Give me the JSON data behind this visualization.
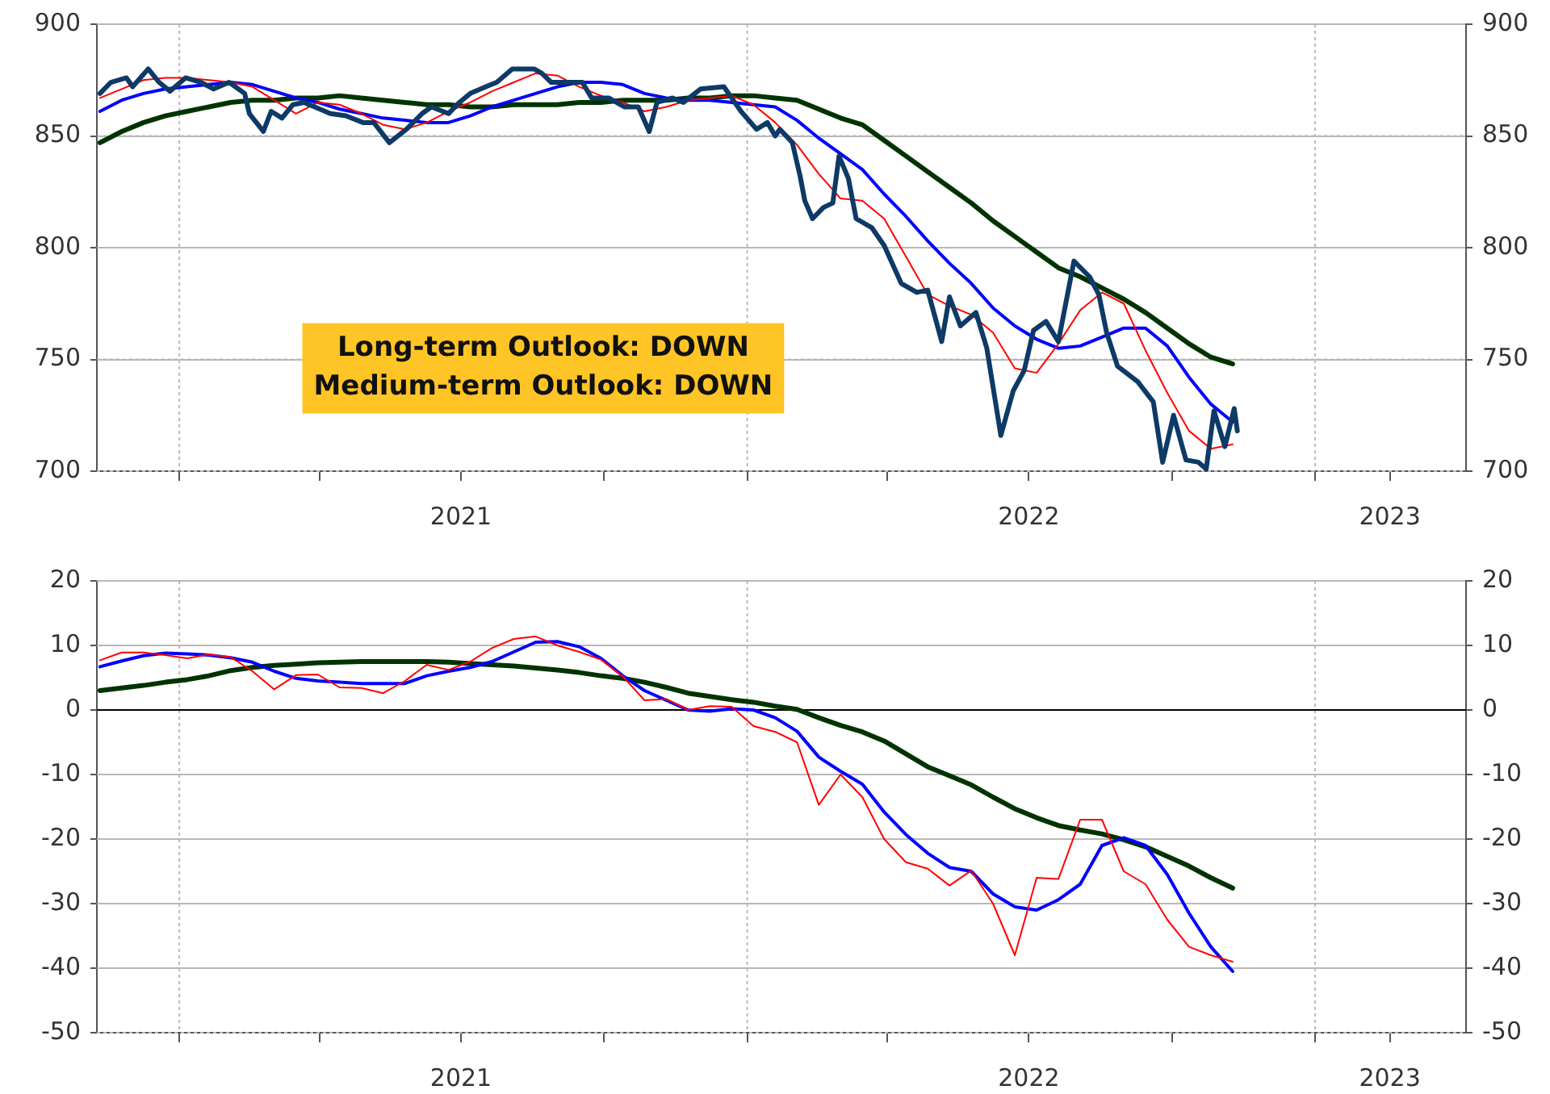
{
  "chart_data": [
    {
      "type": "line",
      "annotations": [
        "Long-term Outlook: DOWN",
        "Medium-term Outlook: DOWN"
      ],
      "x": [
        "2020-11-11",
        "2020-11-25",
        "2020-12-09",
        "2020-12-23",
        "2021-01-06",
        "2021-01-20",
        "2021-02-03",
        "2021-02-17",
        "2021-03-03",
        "2021-03-17",
        "2021-03-31",
        "2021-04-14",
        "2021-04-28",
        "2021-05-12",
        "2021-05-26",
        "2021-06-09",
        "2021-06-23",
        "2021-07-07",
        "2021-07-21",
        "2021-08-04",
        "2021-08-18",
        "2021-09-01",
        "2021-09-15",
        "2021-09-29",
        "2021-10-13",
        "2021-10-27",
        "2021-11-10",
        "2021-11-24",
        "2021-12-08",
        "2021-12-22",
        "2022-01-05",
        "2022-01-19",
        "2022-02-02",
        "2022-02-16",
        "2022-03-02",
        "2022-03-16",
        "2022-03-30",
        "2022-04-13",
        "2022-04-27",
        "2022-05-11",
        "2022-05-25",
        "2022-06-08",
        "2022-06-22",
        "2022-07-06",
        "2022-07-20",
        "2022-08-03",
        "2022-08-17",
        "2022-08-31",
        "2022-09-14",
        "2022-09-28",
        "2022-10-12",
        "2022-10-26",
        "2022-11-09"
      ],
      "series": [
        {
          "color": "#0d3a66",
          "x": [
            "2020-11-11",
            "2020-11-18",
            "2020-11-28",
            "2020-12-02",
            "2020-12-12",
            "2020-12-19",
            "2020-12-26",
            "2021-01-05",
            "2021-01-15",
            "2021-01-23",
            "2021-02-02",
            "2021-02-12",
            "2021-02-15",
            "2021-02-24",
            "2021-03-01",
            "2021-03-08",
            "2021-03-15",
            "2021-03-22",
            "2021-03-29",
            "2021-04-08",
            "2021-04-18",
            "2021-04-29",
            "2021-05-06",
            "2021-05-16",
            "2021-05-27",
            "2021-06-06",
            "2021-06-12",
            "2021-06-23",
            "2021-06-30",
            "2021-07-07",
            "2021-07-17",
            "2021-07-24",
            "2021-08-03",
            "2021-08-17",
            "2021-08-22",
            "2021-08-28",
            "2021-09-07",
            "2021-09-17",
            "2021-09-23",
            "2021-10-04",
            "2021-10-14",
            "2021-10-23",
            "2021-10-30",
            "2021-11-04",
            "2021-11-14",
            "2021-11-21",
            "2021-12-02",
            "2021-12-17",
            "2021-12-28",
            "2022-01-07",
            "2022-01-14",
            "2022-01-19",
            "2022-01-22",
            "2022-01-30",
            "2022-02-04",
            "2022-02-07",
            "2022-02-12",
            "2022-02-19",
            "2022-02-25",
            "2022-03-01",
            "2022-03-07",
            "2022-03-12",
            "2022-03-22",
            "2022-03-30",
            "2022-04-10",
            "2022-04-20",
            "2022-04-27",
            "2022-05-06",
            "2022-05-11",
            "2022-05-18",
            "2022-05-28",
            "2022-06-04",
            "2022-06-13",
            "2022-06-21",
            "2022-06-28",
            "2022-07-04",
            "2022-07-12",
            "2022-07-20",
            "2022-07-30",
            "2022-08-09",
            "2022-08-15",
            "2022-08-20",
            "2022-08-27",
            "2022-09-09",
            "2022-09-19",
            "2022-09-25",
            "2022-10-02",
            "2022-10-10",
            "2022-10-18",
            "2022-10-23",
            "2022-10-28",
            "2022-11-04",
            "2022-11-10",
            "2022-11-12"
          ],
          "values": [
            869,
            874,
            876,
            872,
            880,
            874,
            870,
            876,
            874,
            871,
            874,
            869,
            860,
            852,
            861,
            858,
            864,
            865,
            863,
            860,
            859,
            856,
            856,
            847,
            853,
            860,
            863,
            860,
            865,
            869,
            872,
            874,
            880,
            880,
            878,
            874,
            874,
            874,
            867,
            867,
            863,
            863,
            852,
            865,
            867,
            865,
            871,
            872,
            861,
            853,
            856,
            850,
            853,
            847,
            832,
            821,
            813,
            818,
            820,
            841,
            831,
            813,
            809,
            801,
            784,
            780,
            781,
            758,
            778,
            765,
            771,
            755,
            716,
            736,
            745,
            763,
            767,
            758,
            794,
            787,
            779,
            762,
            747,
            740,
            731,
            704,
            725,
            705,
            704,
            701,
            727,
            711,
            728,
            718
          ]
        },
        {
          "color": "#ff0000",
          "values": [
            867,
            871,
            875,
            876,
            876,
            875,
            874,
            872,
            866,
            860,
            865,
            864,
            860,
            855,
            853,
            856,
            861,
            865,
            870,
            874,
            878,
            877,
            872,
            868,
            865,
            861,
            863,
            866,
            867,
            868,
            864,
            856,
            846,
            833,
            822,
            821,
            813,
            796,
            779,
            774,
            770,
            762,
            746,
            744,
            757,
            772,
            780,
            775,
            754,
            735,
            718,
            710,
            712
          ]
        },
        {
          "color": "#0000ff",
          "values": [
            861,
            866,
            869,
            871,
            872,
            873,
            874,
            873,
            870,
            867,
            865,
            862,
            860,
            858,
            857,
            856,
            856,
            859,
            863,
            866,
            869,
            872,
            874,
            874,
            873,
            869,
            867,
            866,
            866,
            865,
            864,
            863,
            857,
            849,
            842,
            835,
            824,
            814,
            803,
            793,
            784,
            773,
            765,
            759,
            755,
            756,
            760,
            764,
            764,
            756,
            742,
            730,
            722
          ]
        },
        {
          "color": "#003300",
          "values": [
            847,
            852,
            856,
            859,
            861,
            863,
            865,
            866,
            866,
            867,
            867,
            868,
            867,
            866,
            865,
            864,
            864,
            863,
            863,
            864,
            864,
            864,
            865,
            865,
            866,
            866,
            866,
            867,
            867,
            868,
            868,
            867,
            866,
            862,
            858,
            855,
            848,
            841,
            834,
            827,
            820,
            812,
            805,
            798,
            791,
            787,
            782,
            777,
            771,
            764,
            757,
            751,
            748
          ]
        }
      ],
      "xlim": [
        "2020-11-09",
        "2023-04-08"
      ],
      "xticks": [
        {
          "value": "2021-01-01",
          "label": null
        },
        {
          "value": "2021-04-01",
          "label": null
        },
        {
          "value": "2021-07-01",
          "label": "2021"
        },
        {
          "value": "2021-10-01",
          "label": null
        },
        {
          "value": "2022-01-01",
          "label": null
        },
        {
          "value": "2022-04-01",
          "label": null
        },
        {
          "value": "2022-07-01",
          "label": "2022"
        },
        {
          "value": "2022-10-01",
          "label": null
        },
        {
          "value": "2023-01-01",
          "label": null
        },
        {
          "value": "2023-02-18",
          "label": "2023"
        }
      ],
      "ylim": [
        700,
        900
      ],
      "yticks": [
        700,
        750,
        800,
        850,
        900
      ],
      "y2lim": [
        700,
        900
      ],
      "y2ticks": [
        700,
        750,
        800,
        850,
        900
      ],
      "ref_lines": [
        {
          "axis": "x",
          "value": "2021-01-01",
          "color": "#bbbbbb",
          "line_style": "dotted"
        },
        {
          "axis": "x",
          "value": "2022-01-01",
          "color": "#bbbbbb",
          "line_style": "dotted"
        },
        {
          "axis": "x",
          "value": "2023-01-01",
          "color": "#bbbbbb",
          "line_style": "dotted"
        }
      ],
      "grid": "y",
      "legend": false
    },
    {
      "type": "line",
      "x": [
        "2020-11-11",
        "2020-11-25",
        "2020-12-09",
        "2020-12-23",
        "2021-01-06",
        "2021-01-20",
        "2021-02-03",
        "2021-02-17",
        "2021-03-03",
        "2021-03-17",
        "2021-03-31",
        "2021-04-14",
        "2021-04-28",
        "2021-05-12",
        "2021-05-26",
        "2021-06-09",
        "2021-06-23",
        "2021-07-07",
        "2021-07-21",
        "2021-08-04",
        "2021-08-18",
        "2021-09-01",
        "2021-09-15",
        "2021-09-29",
        "2021-10-13",
        "2021-10-27",
        "2021-11-10",
        "2021-11-24",
        "2021-12-08",
        "2021-12-22",
        "2022-01-05",
        "2022-01-19",
        "2022-02-02",
        "2022-02-16",
        "2022-03-02",
        "2022-03-16",
        "2022-03-30",
        "2022-04-13",
        "2022-04-27",
        "2022-05-11",
        "2022-05-25",
        "2022-06-08",
        "2022-06-22",
        "2022-07-06",
        "2022-07-20",
        "2022-08-03",
        "2022-08-17",
        "2022-08-31",
        "2022-09-14",
        "2022-09-28",
        "2022-10-12",
        "2022-10-26",
        "2022-11-09"
      ],
      "series": [
        {
          "color": "#ff0000",
          "values": [
            7.7,
            8.9,
            8.9,
            8.5,
            8.0,
            8.6,
            8.2,
            6.0,
            3.2,
            5.4,
            5.5,
            3.5,
            3.4,
            2.6,
            4.5,
            7.0,
            6.2,
            7.5,
            9.6,
            11.0,
            11.4,
            10.0,
            9.0,
            7.8,
            5.2,
            1.5,
            1.7,
            0.0,
            0.6,
            0.5,
            -2.5,
            -3.4,
            -5.0,
            -14.7,
            -10.0,
            -13.5,
            -20.0,
            -23.6,
            -24.6,
            -27.2,
            -24.9,
            -30.0,
            -38.0,
            -26.0,
            -26.2,
            -17.0,
            -17.0,
            -25.0,
            -27.0,
            -32.5,
            -36.7,
            -38.0,
            -39.0
          ]
        },
        {
          "color": "#0000ff",
          "values": [
            6.7,
            7.6,
            8.4,
            8.8,
            8.7,
            8.5,
            8.1,
            7.4,
            6.0,
            4.9,
            4.5,
            4.3,
            4.1,
            4.1,
            4.1,
            5.3,
            6.0,
            6.6,
            7.5,
            9.0,
            10.5,
            10.6,
            9.8,
            8.0,
            5.3,
            3.0,
            1.5,
            0.0,
            -0.2,
            0.2,
            0.0,
            -1.2,
            -3.3,
            -7.3,
            -9.5,
            -11.5,
            -15.8,
            -19.3,
            -22.2,
            -24.4,
            -25.0,
            -28.5,
            -30.5,
            -31.0,
            -29.4,
            -27.0,
            -21.0,
            -19.8,
            -21.0,
            -25.5,
            -31.5,
            -36.7,
            -40.5
          ]
        },
        {
          "color": "#003300",
          "values": [
            3.0,
            3.4,
            3.8,
            4.3,
            4.7,
            5.3,
            6.1,
            6.6,
            6.9,
            7.1,
            7.3,
            7.4,
            7.5,
            7.5,
            7.5,
            7.5,
            7.4,
            7.2,
            7.0,
            6.8,
            6.5,
            6.2,
            5.8,
            5.3,
            4.9,
            4.3,
            3.5,
            2.6,
            2.1,
            1.6,
            1.2,
            0.6,
            0.1,
            -1.2,
            -2.4,
            -3.4,
            -4.8,
            -6.8,
            -8.8,
            -10.2,
            -11.6,
            -13.5,
            -15.3,
            -16.7,
            -17.9,
            -18.6,
            -19.2,
            -20.1,
            -21.2,
            -22.7,
            -24.2,
            -26.0,
            -27.6
          ]
        }
      ],
      "xlim": [
        "2020-11-09",
        "2023-04-08"
      ],
      "xticks": [
        {
          "value": "2021-01-01",
          "label": null
        },
        {
          "value": "2021-04-01",
          "label": null
        },
        {
          "value": "2021-07-01",
          "label": "2021"
        },
        {
          "value": "2021-10-01",
          "label": null
        },
        {
          "value": "2022-01-01",
          "label": null
        },
        {
          "value": "2022-04-01",
          "label": null
        },
        {
          "value": "2022-07-01",
          "label": "2022"
        },
        {
          "value": "2022-10-01",
          "label": null
        },
        {
          "value": "2023-01-01",
          "label": null
        },
        {
          "value": "2023-02-18",
          "label": "2023"
        }
      ],
      "ylim": [
        -50,
        20
      ],
      "yticks": [
        -50,
        -40,
        -30,
        -20,
        -10,
        0,
        10,
        20
      ],
      "y2lim": [
        -50,
        20
      ],
      "y2ticks": [
        -50,
        -40,
        -30,
        -20,
        -10,
        0,
        10,
        20
      ],
      "ref_lines": [
        {
          "axis": "x",
          "value": "2021-01-01",
          "color": "#bbbbbb",
          "line_style": "dotted"
        },
        {
          "axis": "x",
          "value": "2022-01-01",
          "color": "#bbbbbb",
          "line_style": "dotted"
        },
        {
          "axis": "x",
          "value": "2023-01-01",
          "color": "#bbbbbb",
          "line_style": "dotted"
        },
        {
          "axis": "y",
          "value": 0,
          "color": "#000000",
          "line_style": "solid"
        }
      ],
      "grid": "y",
      "legend": false
    }
  ]
}
